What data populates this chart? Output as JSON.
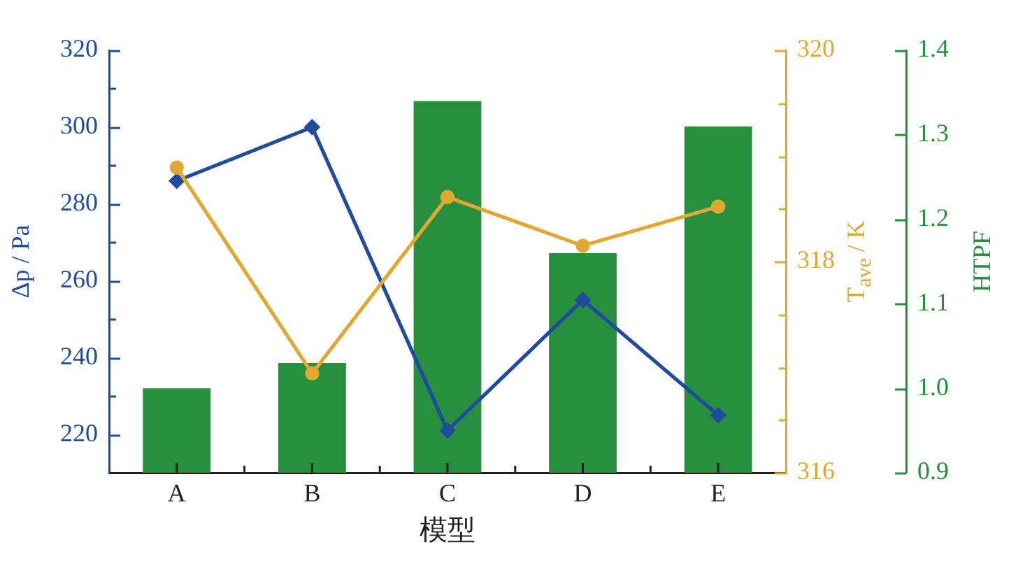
{
  "chart_data": {
    "type": "bar",
    "categories": [
      "A",
      "B",
      "C",
      "D",
      "E"
    ],
    "xlabel": "模型",
    "ylabel": "Δp / Pa",
    "y2label": "T$_{ave}$ / K",
    "y3label": "HTPF",
    "series": [
      {
        "axis": "y3",
        "color": "#27903f",
        "values": [
          1,
          1.03,
          1.34,
          1.16,
          1.31
        ]
      },
      {
        "type": "line",
        "axis": "y",
        "color": "#214b9f",
        "marker": "diamond",
        "values": [
          286,
          300,
          221,
          255,
          225
        ]
      },
      {
        "type": "line",
        "axis": "y2",
        "color": "#e2a932",
        "marker": "circle",
        "values": [
          318.89,
          316.94,
          318.61,
          318.15,
          318.52
        ]
      }
    ],
    "ylim": [
      210,
      320
    ],
    "yticks": [
      220,
      {
        "value": 230,
        "label": null
      },
      240,
      {
        "value": 250,
        "label": null
      },
      260,
      {
        "value": 270,
        "label": null
      },
      280,
      {
        "value": 290,
        "label": null
      },
      300,
      {
        "value": 310,
        "label": null
      },
      320
    ],
    "y2lim": [
      316,
      320
    ],
    "y2ticks": [
      316,
      {
        "value": 316.5,
        "label": null
      },
      {
        "value": 317,
        "label": null
      },
      {
        "value": 317.5,
        "label": null
      },
      318,
      {
        "value": 318.5,
        "label": null
      },
      {
        "value": 319,
        "label": null
      },
      {
        "value": 319.5,
        "label": null
      },
      320
    ],
    "y3lim": [
      0.9,
      1.4
    ],
    "y3ticks": [
      0.9,
      {
        "value": 1,
        "label": "1.0"
      },
      1.1,
      1.2,
      1.3,
      1.4
    ],
    "grid": false,
    "legend": false
  }
}
